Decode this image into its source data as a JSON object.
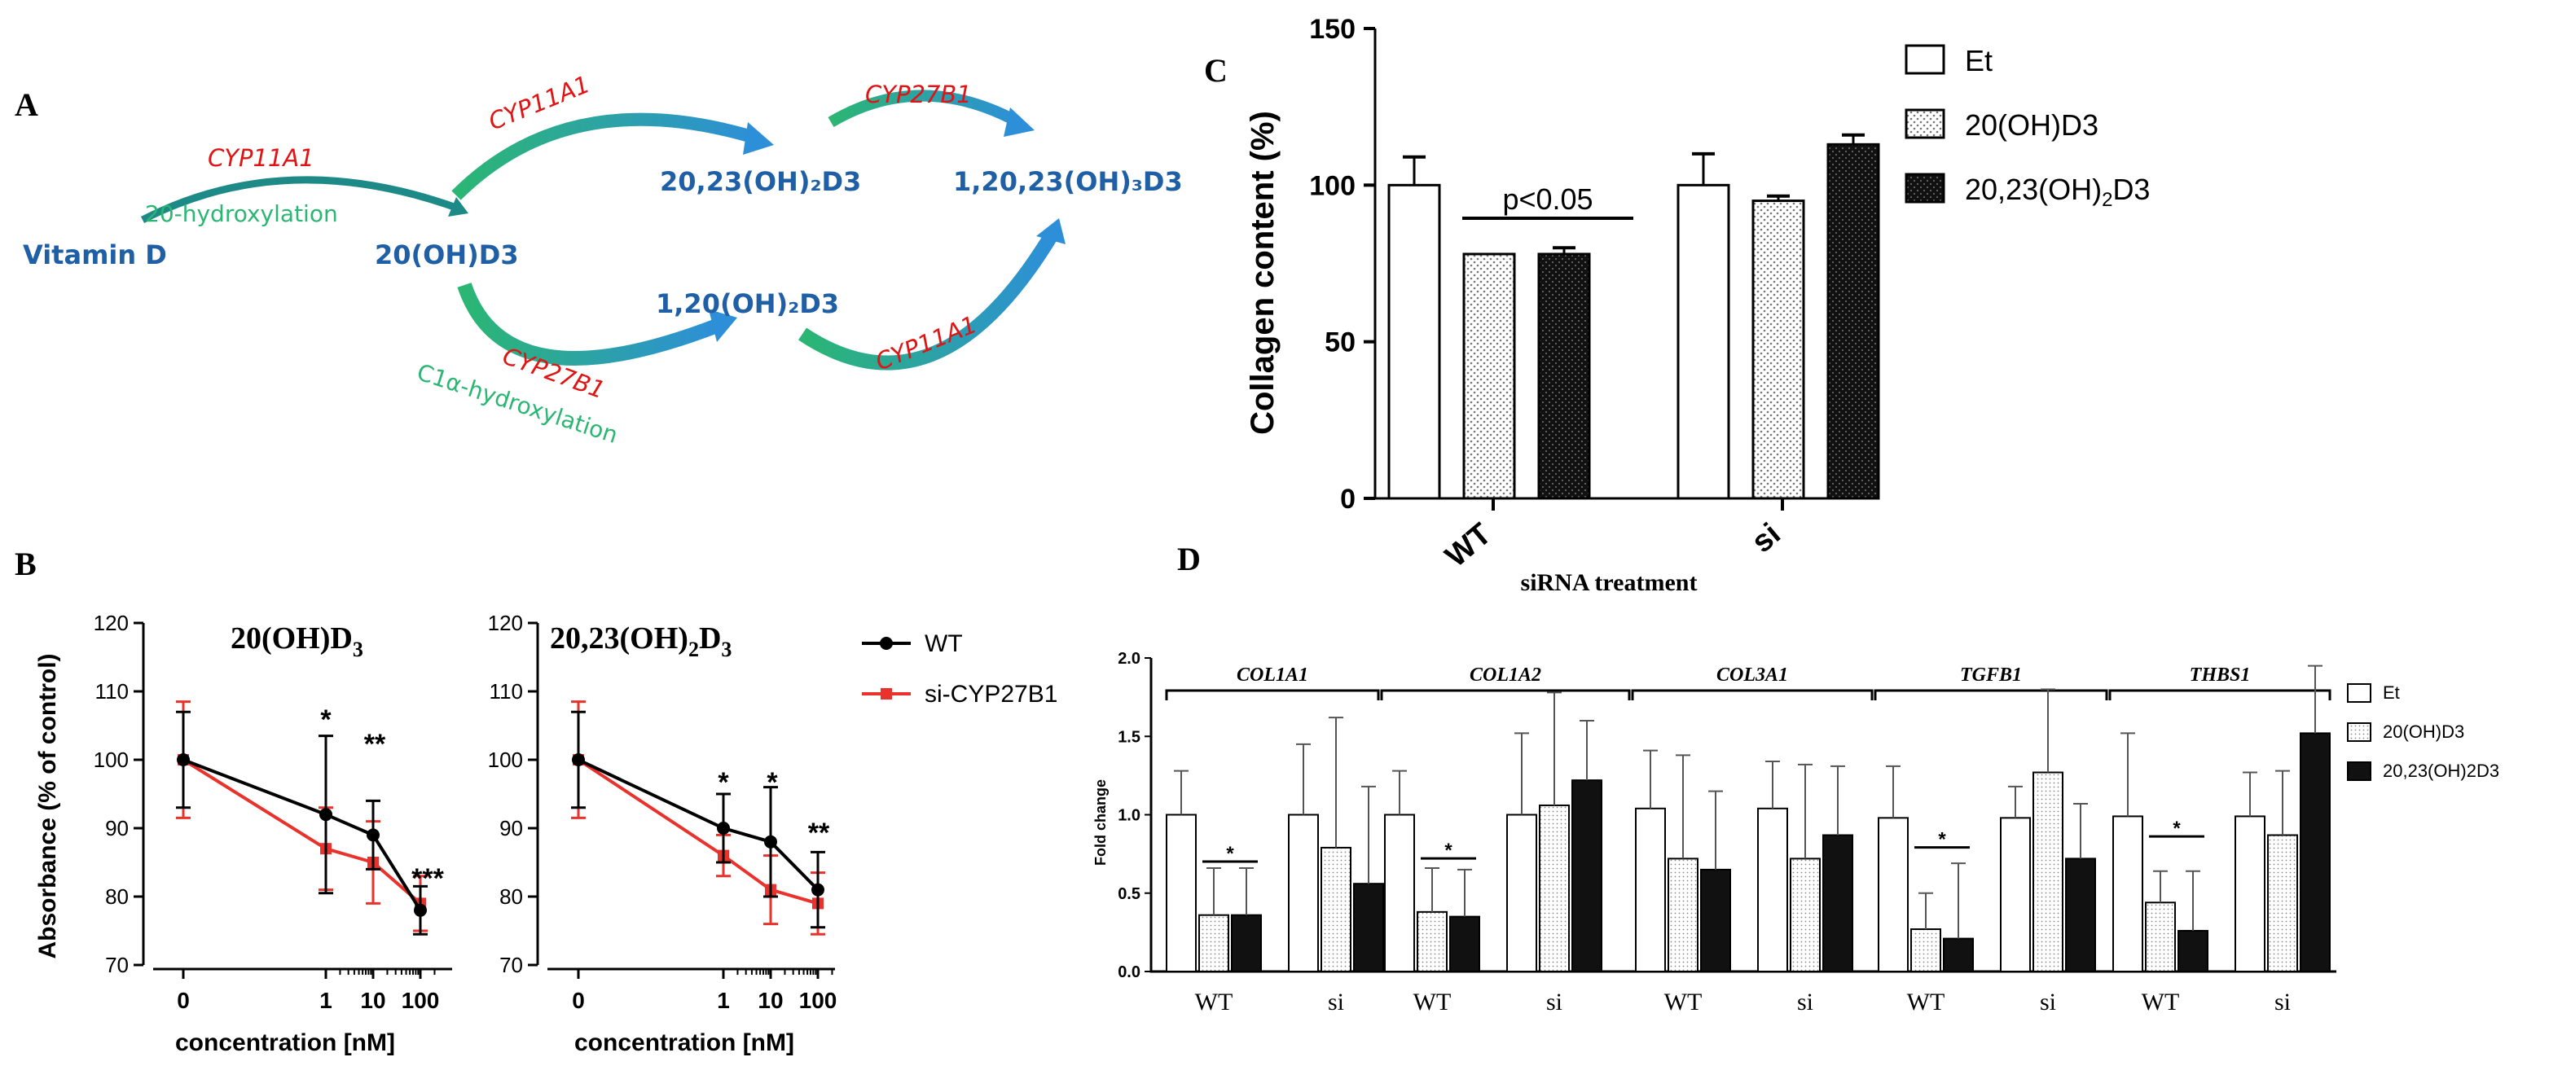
{
  "panel_a": {
    "letter": "A",
    "nodes": {
      "vitd": "Vitamin D",
      "oh20": "20(OH)D3",
      "oh2023": "20,23(OH)₂D3",
      "oh120": "1,20(OH)₂D3",
      "oh12023": "1,20,23(OH)₃D3"
    },
    "enzymes": {
      "e1": "CYP11A1",
      "e2": "CYP11A1",
      "e3": "CYP27B1",
      "e4": "CYP27B1",
      "e5": "CYP11A1"
    },
    "reactions": {
      "r1": "20-hydroxylation",
      "r2": "C1α-hydroxylation"
    }
  },
  "panel_b": {
    "letter": "B",
    "legend": [
      "WT",
      "si-CYP27B1"
    ],
    "colors": {
      "wt": "#000000",
      "si": "#e8322b"
    }
  },
  "panel_c": {
    "letter": "C",
    "colors": {
      "et": "#ffffff",
      "oh20": "#e8e8e8",
      "oh2023": "#111111"
    }
  },
  "panel_d": {
    "letter": "D"
  },
  "chart_data": [
    {
      "type": "line",
      "panel": "B-left",
      "title": "20(OH)D",
      "title_sub": "3",
      "xlabel": "concentration [nM]",
      "ylabel": "Absorbance (% of control)",
      "ylim": [
        70,
        120
      ],
      "yticks": [
        "70",
        "80",
        "90",
        "100",
        "110",
        "120"
      ],
      "xticks": [
        "0",
        "1",
        "10",
        "100"
      ],
      "x": [
        0,
        1,
        10,
        100
      ],
      "series": [
        {
          "name": "WT",
          "values": [
            100,
            92,
            89,
            78
          ],
          "err": [
            7,
            11.5,
            5,
            3.5
          ]
        },
        {
          "name": "si-CYP27B1",
          "values": [
            100,
            87,
            85,
            79
          ],
          "err": [
            8.5,
            6,
            6,
            4
          ]
        }
      ],
      "annotations": [
        "*",
        "**",
        "***"
      ]
    },
    {
      "type": "line",
      "panel": "B-right",
      "title": "20,23(OH)",
      "title_mid": "2",
      "title_d": "D",
      "title_sub": "3",
      "xlabel": "concentration [nM]",
      "ylim": [
        70,
        120
      ],
      "yticks": [
        "70",
        "80",
        "90",
        "100",
        "110",
        "120"
      ],
      "xticks": [
        "0",
        "1",
        "10",
        "100"
      ],
      "x": [
        0,
        1,
        10,
        100
      ],
      "series": [
        {
          "name": "WT",
          "values": [
            100,
            90,
            88,
            81
          ],
          "err": [
            7,
            5,
            8,
            5.5
          ]
        },
        {
          "name": "si-CYP27B1",
          "values": [
            100,
            86,
            81,
            79
          ],
          "err": [
            8.5,
            3,
            5,
            4.5
          ]
        }
      ],
      "annotations": [
        "*",
        "*",
        "**"
      ]
    },
    {
      "type": "bar",
      "panel": "C",
      "ylabel": "Collagen content (%)",
      "xlabel": "siRNA treatment",
      "ylim": [
        0,
        150
      ],
      "yticks": [
        "0",
        "50",
        "100",
        "150"
      ],
      "categories": [
        "WT",
        "si"
      ],
      "series": [
        {
          "name": "Et",
          "values": [
            100,
            100
          ],
          "err": [
            9,
            10
          ]
        },
        {
          "name": "20(OH)D3",
          "values": [
            78,
            95
          ],
          "err": [
            0,
            1.5
          ]
        },
        {
          "name": "20,23(OH)2D3",
          "values": [
            78,
            113
          ],
          "err": [
            2,
            3
          ]
        }
      ],
      "legend": [
        "Et",
        "20(OH)D3",
        "20,23(OH)",
        "2",
        "D3"
      ],
      "annotation": "p<0.05"
    },
    {
      "type": "bar",
      "panel": "D",
      "ylabel": "Fold change",
      "ylim": [
        0,
        2.0
      ],
      "yticks": [
        "0.0",
        "0.5",
        "1.0",
        "1.5",
        "2.0"
      ],
      "genes": [
        "COL1A1",
        "COL1A2",
        "COL3A1",
        "TGFB1",
        "THBS1"
      ],
      "categories": [
        "WT",
        "si"
      ],
      "series": [
        {
          "name": "Et",
          "values": [
            [
              1.0,
              1.0
            ],
            [
              1.0,
              1.0
            ],
            [
              1.04,
              1.04
            ],
            [
              0.98,
              0.98
            ],
            [
              0.99,
              0.99
            ]
          ],
          "err": [
            [
              0.28,
              0.45
            ],
            [
              0.28,
              0.52
            ],
            [
              0.37,
              0.3
            ],
            [
              0.33,
              0.2
            ],
            [
              0.53,
              0.28
            ]
          ]
        },
        {
          "name": "20(OH)D3",
          "values": [
            [
              0.36,
              0.79
            ],
            [
              0.38,
              1.06
            ],
            [
              0.72,
              0.72
            ],
            [
              0.27,
              1.27
            ],
            [
              0.44,
              0.87
            ]
          ],
          "err": [
            [
              0.3,
              0.83
            ],
            [
              0.28,
              0.72
            ],
            [
              0.66,
              0.6
            ],
            [
              0.23,
              0.53
            ],
            [
              0.2,
              0.41
            ]
          ]
        },
        {
          "name": "20,23(OH)2D3",
          "values": [
            [
              0.36,
              0.56
            ],
            [
              0.35,
              1.22
            ],
            [
              0.65,
              0.87
            ],
            [
              0.21,
              0.72
            ],
            [
              0.26,
              1.52
            ]
          ],
          "err": [
            [
              0.3,
              0.62
            ],
            [
              0.3,
              0.38
            ],
            [
              0.5,
              0.44
            ],
            [
              0.48,
              0.35
            ],
            [
              0.38,
              0.43
            ]
          ]
        }
      ],
      "legend": [
        "Et",
        "20(OH)D3",
        "20,23(OH)2D3"
      ],
      "annotation": "*"
    }
  ]
}
